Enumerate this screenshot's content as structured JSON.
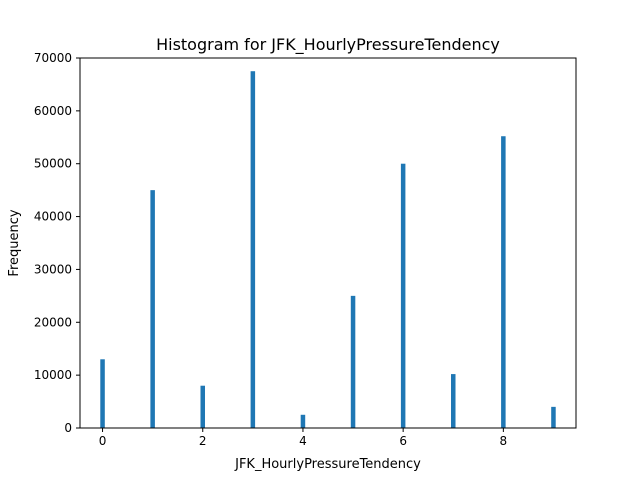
{
  "chart_data": {
    "type": "bar",
    "title": "Histogram for JFK_HourlyPressureTendency",
    "xlabel": "JFK_HourlyPressureTendency",
    "ylabel": "Frequency",
    "xlim": [
      -0.45,
      9.45
    ],
    "ylim": [
      0,
      70000
    ],
    "xticks": [
      0,
      2,
      4,
      6,
      8
    ],
    "yticks": [
      0,
      10000,
      20000,
      30000,
      40000,
      50000,
      60000,
      70000
    ],
    "grid": false,
    "bin_width": 0.09,
    "color": "#1f77b4",
    "x": [
      0,
      1,
      2,
      3,
      4,
      5,
      6,
      7,
      8,
      9
    ],
    "values": [
      13000,
      45000,
      8000,
      67500,
      2500,
      25000,
      50000,
      10200,
      55200,
      4000
    ]
  }
}
